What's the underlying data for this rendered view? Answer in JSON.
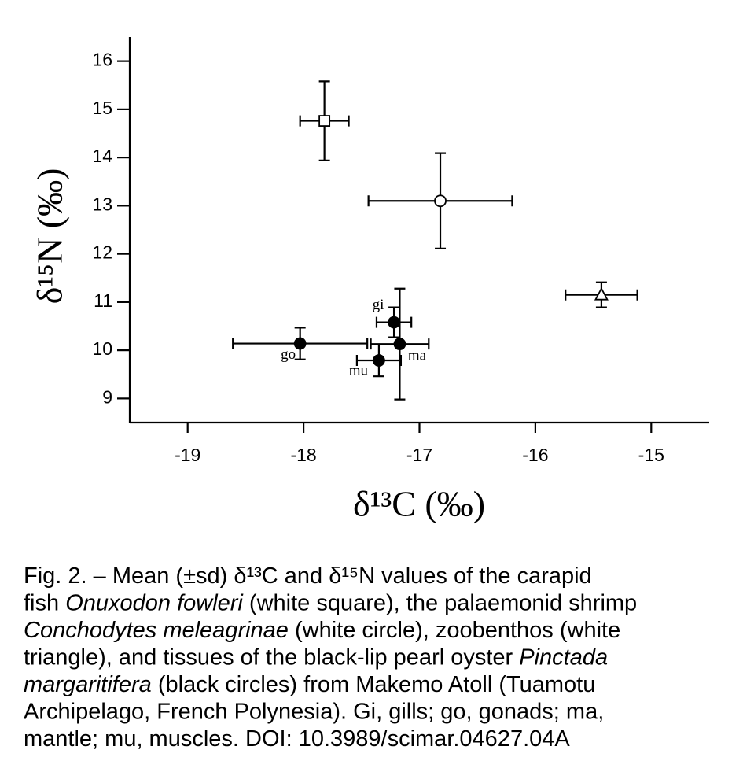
{
  "chart_data": {
    "type": "scatter",
    "x_label": "δ¹³C (‰)",
    "y_label": "δ¹⁵N (‰)",
    "xlim": [
      -19.5,
      -14.5
    ],
    "ylim": [
      8.5,
      16.5
    ],
    "xticks": [
      -19,
      -18,
      -17,
      -16,
      -15
    ],
    "yticks": [
      9,
      10,
      11,
      12,
      13,
      14,
      15,
      16
    ],
    "points": [
      {
        "marker": "square",
        "x": -17.82,
        "y": 14.76,
        "xerr": 0.21,
        "yerr": 0.82
      },
      {
        "marker": "circle",
        "x": -16.82,
        "y": 13.1,
        "xerr": 0.62,
        "yerr": 0.99
      },
      {
        "marker": "triangle",
        "x": -15.43,
        "y": 11.15,
        "xerr": 0.31,
        "yerr": 0.26
      },
      {
        "marker": "filled-circle",
        "label": "gi",
        "x": -17.22,
        "y": 10.58,
        "xerr": 0.15,
        "yerr": 0.31
      },
      {
        "marker": "filled-circle",
        "label": "go",
        "x": -18.03,
        "y": 10.14,
        "xerr": 0.58,
        "yerr": 0.33
      },
      {
        "marker": "filled-circle",
        "label": "ma",
        "x": -17.17,
        "y": 10.13,
        "xerr": 0.25,
        "yerr": 1.15
      },
      {
        "marker": "filled-circle",
        "label": "mu",
        "x": -17.35,
        "y": 9.79,
        "xerr": 0.19,
        "yerr": 0.33
      }
    ]
  },
  "caption": [
    [
      {
        "text": "Fig. 2. – Mean (±sd) δ¹³C and δ¹⁵N values of the carapid",
        "italic": false
      }
    ],
    [
      {
        "text": "fish ",
        "italic": false
      },
      {
        "text": "Onuxodon fowleri",
        "italic": true
      },
      {
        "text": " (white square), the palaemonid shrimp",
        "italic": false
      }
    ],
    [
      {
        "text": "Conchodytes meleagrinae",
        "italic": true
      },
      {
        "text": " (white circle), zoobenthos (white",
        "italic": false
      }
    ],
    [
      {
        "text": "triangle), and tissues of the black-lip pearl oyster ",
        "italic": false
      },
      {
        "text": "Pinctada",
        "italic": true
      }
    ],
    [
      {
        "text": "margaritifera",
        "italic": true
      },
      {
        "text": " (black circles) from Makemo Atoll (Tuamotu",
        "italic": false
      }
    ],
    [
      {
        "text": "Archipelago, French Polynesia). Gi, gills; go, gonads; ma,",
        "italic": false
      }
    ],
    [
      {
        "text": "mantle; mu, muscles. DOI: 10.3989/scimar.04627.04A",
        "italic": false
      }
    ]
  ]
}
